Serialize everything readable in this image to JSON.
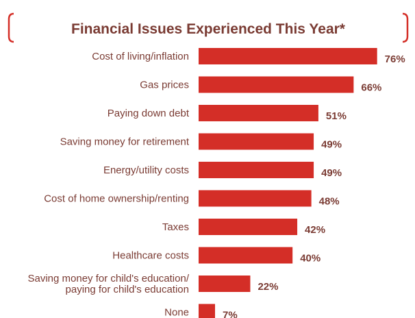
{
  "colors": {
    "bar": "#d42e27",
    "bracket": "#d42e27",
    "label": "#7a3b33",
    "title": "#7a3b33"
  },
  "chart_data": {
    "type": "bar",
    "orientation": "horizontal",
    "title": "Financial Issues Experienced This Year*",
    "categories": [
      "Cost of living/inflation",
      "Gas prices",
      "Paying down debt",
      "Saving money for retirement",
      "Energy/utility costs",
      "Cost of home ownership/renting",
      "Taxes",
      "Healthcare costs",
      [
        "Saving money for child's education/",
        "paying for child's education"
      ],
      "None"
    ],
    "values": [
      76,
      66,
      51,
      49,
      49,
      48,
      42,
      40,
      22,
      7
    ],
    "value_labels": [
      "76%",
      "66%",
      "51%",
      "49%",
      "49%",
      "48%",
      "42%",
      "40%",
      "22%",
      "7%"
    ],
    "xlim": [
      0,
      100
    ],
    "grid": false,
    "legend": "none"
  }
}
